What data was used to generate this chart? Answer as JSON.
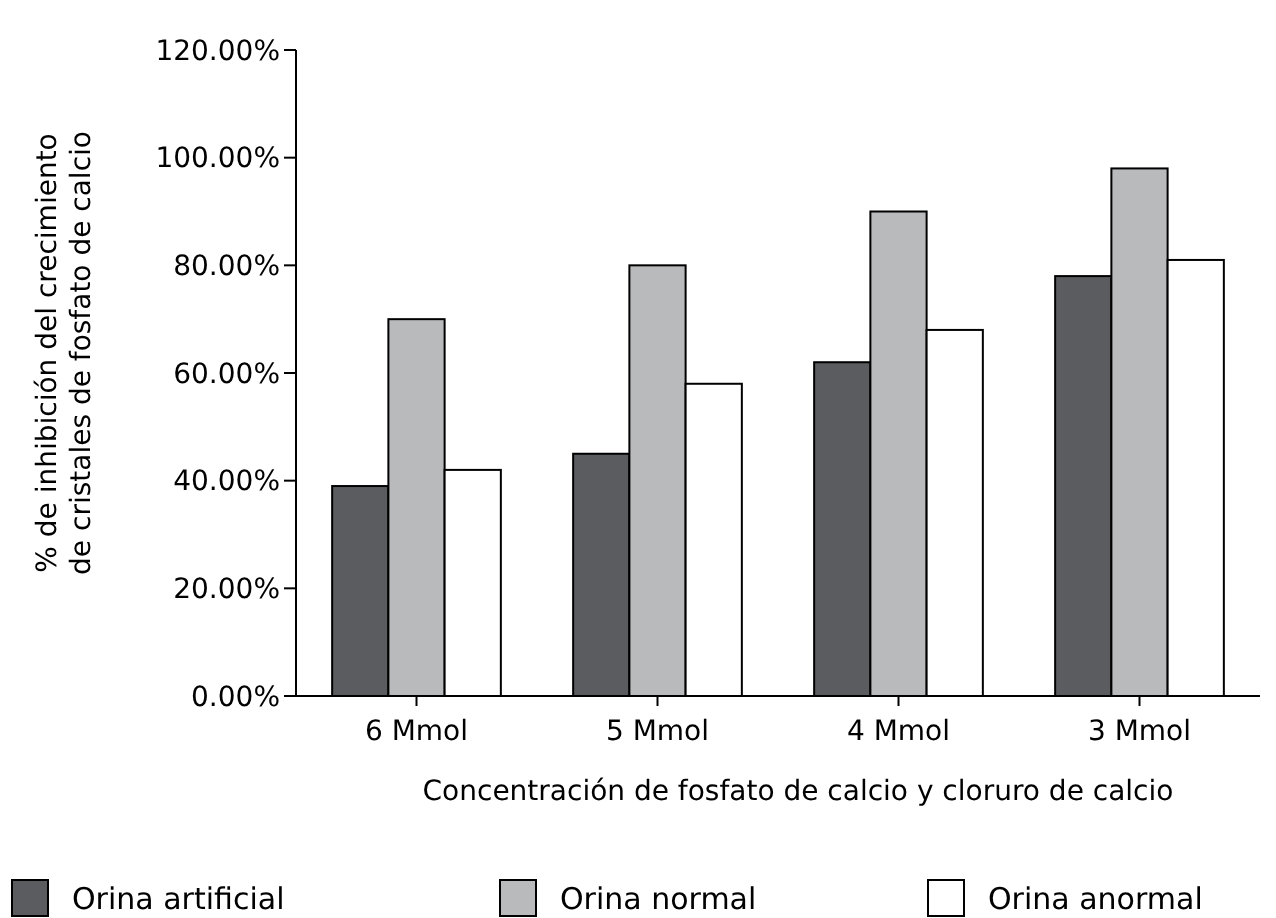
{
  "chart_data": {
    "type": "bar",
    "xlabel": "Concentración de fosfato de calcio y cloruro de calcio",
    "ylabel": "% de inhibición del crecimiento\nde cristales de fosfato de calcio",
    "categories": [
      "6 Mmol",
      "5 Mmol",
      "4 Mmol",
      "3 Mmol"
    ],
    "series": [
      {
        "name": "Orina artificial",
        "color": "#5b5c60",
        "values": [
          39,
          45,
          62,
          78
        ]
      },
      {
        "name": "Orina normal",
        "color": "#b9babc",
        "values": [
          70,
          80,
          90,
          98
        ]
      },
      {
        "name": "Orina anormal",
        "color": "#ffffff",
        "values": [
          42,
          58,
          68,
          81
        ]
      }
    ],
    "ylim": [
      0,
      120
    ],
    "yticks": [
      {
        "value": 0,
        "label": "0.00%"
      },
      {
        "value": 20,
        "label": "20.00%"
      },
      {
        "value": 40,
        "label": "40.00%"
      },
      {
        "value": 60,
        "label": "60.00%"
      },
      {
        "value": 80,
        "label": "80.00%"
      },
      {
        "value": 100,
        "label": "100.00%"
      },
      {
        "value": 120,
        "label": "120.00%"
      }
    ],
    "grid": false,
    "legend": "bottom"
  }
}
